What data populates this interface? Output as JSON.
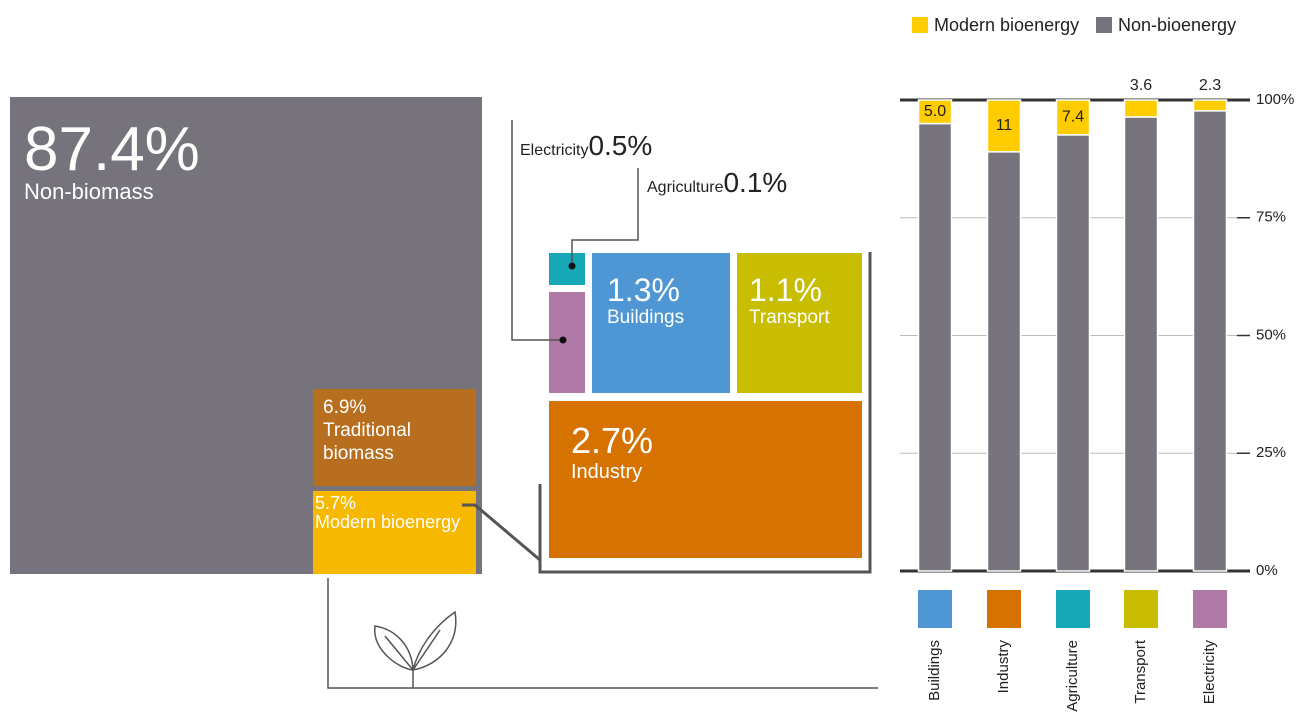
{
  "chart_data": [
    {
      "type": "treemap",
      "categories": [
        "Non-biomass",
        "Traditional biomass",
        "Modern bioenergy"
      ],
      "values": [
        87.4,
        6.9,
        5.7
      ],
      "value_labels": [
        "87.4%",
        "6.9%",
        "5.7%"
      ],
      "colors": [
        "#76737c",
        "#b86e1f",
        "#f6b800"
      ],
      "breakdown": {
        "categories": [
          "Industry",
          "Buildings",
          "Transport",
          "Electricity",
          "Agriculture"
        ],
        "values": [
          2.7,
          1.3,
          1.1,
          0.5,
          0.1
        ],
        "value_labels": [
          "2.7%",
          "1.3%",
          "1.1%",
          "0.5%",
          "0.1%"
        ],
        "colors": [
          "#d67200",
          "#4e97d4",
          "#c8bd00",
          "#b07aa6",
          "#16a8b4"
        ]
      }
    },
    {
      "type": "bar",
      "stacked": true,
      "categories": [
        "Buildings",
        "Industry",
        "Agriculture",
        "Transport",
        "Electricity"
      ],
      "series": [
        {
          "name": "Modern bioenergy",
          "color": "#ffcc00",
          "values": [
            5.0,
            11,
            7.4,
            3.6,
            2.3
          ],
          "value_labels": [
            "5.0",
            "11",
            "7.4",
            "3.6",
            "2.3"
          ]
        },
        {
          "name": "Non-bioenergy",
          "color": "#76737c",
          "values": [
            95,
            89,
            92.6,
            96.4,
            97.7
          ]
        }
      ],
      "ylim": [
        0,
        100
      ],
      "yticks": [
        {
          "value": 0,
          "label": "0%"
        },
        {
          "value": 25,
          "label": "25%"
        },
        {
          "value": 50,
          "label": "50%"
        },
        {
          "value": 75,
          "label": "75%"
        },
        {
          "value": 100,
          "label": "100%"
        }
      ],
      "grid": true,
      "legend": "top"
    }
  ]
}
